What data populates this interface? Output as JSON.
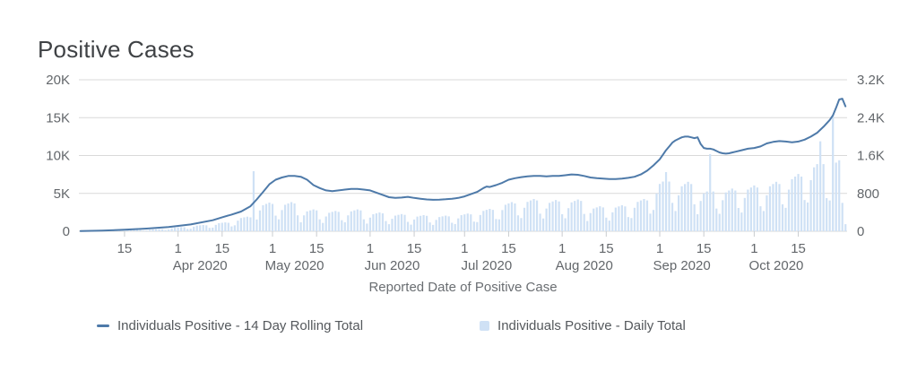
{
  "title": "Positive Cases",
  "colors": {
    "line": "#4e7aa9",
    "bar": "#cfe1f5",
    "grid": "#d9d9d9",
    "tick": "#c9cccf",
    "tick_label": "#63676b",
    "axis_title": "#6a6e72",
    "title_text": "#3f4245",
    "legend_text": "#54585c"
  },
  "chart_data": {
    "type": "combo-line-bar",
    "title": "Positive Cases",
    "legend_position": "bottom",
    "grid": "horizontal-only",
    "x_axis": {
      "title": "Reported Date of Positive Case",
      "range": [
        "2020-03-01",
        "2020-10-30"
      ],
      "ticks": [
        {
          "date": "2020-03-15",
          "label": "15"
        },
        {
          "date": "2020-04-01",
          "label": "1"
        },
        {
          "date": "2020-04-15",
          "label": "15"
        },
        {
          "date": "2020-05-01",
          "label": "1"
        },
        {
          "date": "2020-05-15",
          "label": "15"
        },
        {
          "date": "2020-06-01",
          "label": "1"
        },
        {
          "date": "2020-06-15",
          "label": "15"
        },
        {
          "date": "2020-07-01",
          "label": "1"
        },
        {
          "date": "2020-07-15",
          "label": "15"
        },
        {
          "date": "2020-08-01",
          "label": "1"
        },
        {
          "date": "2020-08-15",
          "label": "15"
        },
        {
          "date": "2020-09-01",
          "label": "1"
        },
        {
          "date": "2020-09-15",
          "label": "15"
        },
        {
          "date": "2020-10-01",
          "label": "1"
        },
        {
          "date": "2020-10-15",
          "label": "15"
        }
      ],
      "month_labels": [
        {
          "date": "2020-04-08",
          "label": "Apr 2020"
        },
        {
          "date": "2020-05-08",
          "label": "May 2020"
        },
        {
          "date": "2020-06-08",
          "label": "Jun 2020"
        },
        {
          "date": "2020-07-08",
          "label": "Jul 2020"
        },
        {
          "date": "2020-08-08",
          "label": "Aug 2020"
        },
        {
          "date": "2020-09-08",
          "label": "Sep 2020"
        },
        {
          "date": "2020-10-08",
          "label": "Oct 2020"
        }
      ]
    },
    "y_axis_left": {
      "max": 20000,
      "ticks": [
        {
          "value": 0,
          "label": "0"
        },
        {
          "value": 5000,
          "label": "5K"
        },
        {
          "value": 10000,
          "label": "10K"
        },
        {
          "value": 15000,
          "label": "15K"
        },
        {
          "value": 20000,
          "label": "20K"
        }
      ]
    },
    "y_axis_right": {
      "max": 3200,
      "ticks": [
        {
          "value": 0,
          "label": "0"
        },
        {
          "value": 800,
          "label": "800"
        },
        {
          "value": 1600,
          "label": "1.6K"
        },
        {
          "value": 2400,
          "label": "2.4K"
        },
        {
          "value": 3200,
          "label": "3.2K"
        }
      ]
    },
    "series": [
      {
        "name": "Individuals Positive - 14 Day Rolling Total",
        "type": "line",
        "axis": "left",
        "points": [
          [
            "2020-03-01",
            30
          ],
          [
            "2020-03-08",
            90
          ],
          [
            "2020-03-15",
            200
          ],
          [
            "2020-03-22",
            360
          ],
          [
            "2020-03-29",
            560
          ],
          [
            "2020-04-05",
            900
          ],
          [
            "2020-04-12",
            1450
          ],
          [
            "2020-04-15",
            1850
          ],
          [
            "2020-04-18",
            2200
          ],
          [
            "2020-04-21",
            2600
          ],
          [
            "2020-04-24",
            3300
          ],
          [
            "2020-04-26",
            4200
          ],
          [
            "2020-04-28",
            5200
          ],
          [
            "2020-04-30",
            6200
          ],
          [
            "2020-05-02",
            6800
          ],
          [
            "2020-05-04",
            7100
          ],
          [
            "2020-05-06",
            7300
          ],
          [
            "2020-05-08",
            7300
          ],
          [
            "2020-05-10",
            7200
          ],
          [
            "2020-05-12",
            6800
          ],
          [
            "2020-05-14",
            6100
          ],
          [
            "2020-05-16",
            5700
          ],
          [
            "2020-05-18",
            5400
          ],
          [
            "2020-05-20",
            5300
          ],
          [
            "2020-05-22",
            5400
          ],
          [
            "2020-05-24",
            5500
          ],
          [
            "2020-05-26",
            5600
          ],
          [
            "2020-05-28",
            5600
          ],
          [
            "2020-05-30",
            5500
          ],
          [
            "2020-06-01",
            5400
          ],
          [
            "2020-06-03",
            5100
          ],
          [
            "2020-06-05",
            4800
          ],
          [
            "2020-06-07",
            4500
          ],
          [
            "2020-06-09",
            4400
          ],
          [
            "2020-06-11",
            4450
          ],
          [
            "2020-06-13",
            4550
          ],
          [
            "2020-06-15",
            4400
          ],
          [
            "2020-06-17",
            4300
          ],
          [
            "2020-06-19",
            4200
          ],
          [
            "2020-06-21",
            4150
          ],
          [
            "2020-06-23",
            4180
          ],
          [
            "2020-06-25",
            4220
          ],
          [
            "2020-06-27",
            4300
          ],
          [
            "2020-06-29",
            4400
          ],
          [
            "2020-07-01",
            4600
          ],
          [
            "2020-07-03",
            4900
          ],
          [
            "2020-07-05",
            5200
          ],
          [
            "2020-07-07",
            5700
          ],
          [
            "2020-07-08",
            5900
          ],
          [
            "2020-07-09",
            5850
          ],
          [
            "2020-07-11",
            6100
          ],
          [
            "2020-07-13",
            6400
          ],
          [
            "2020-07-15",
            6800
          ],
          [
            "2020-07-17",
            7000
          ],
          [
            "2020-07-19",
            7150
          ],
          [
            "2020-07-21",
            7250
          ],
          [
            "2020-07-23",
            7300
          ],
          [
            "2020-07-25",
            7300
          ],
          [
            "2020-07-27",
            7250
          ],
          [
            "2020-07-29",
            7300
          ],
          [
            "2020-07-31",
            7300
          ],
          [
            "2020-08-02",
            7400
          ],
          [
            "2020-08-04",
            7500
          ],
          [
            "2020-08-06",
            7450
          ],
          [
            "2020-08-08",
            7300
          ],
          [
            "2020-08-10",
            7100
          ],
          [
            "2020-08-12",
            7000
          ],
          [
            "2020-08-14",
            6950
          ],
          [
            "2020-08-16",
            6900
          ],
          [
            "2020-08-18",
            6900
          ],
          [
            "2020-08-20",
            6950
          ],
          [
            "2020-08-22",
            7050
          ],
          [
            "2020-08-24",
            7200
          ],
          [
            "2020-08-26",
            7500
          ],
          [
            "2020-08-28",
            8000
          ],
          [
            "2020-08-30",
            8700
          ],
          [
            "2020-09-01",
            9500
          ],
          [
            "2020-09-02",
            10100
          ],
          [
            "2020-09-03",
            10700
          ],
          [
            "2020-09-04",
            11200
          ],
          [
            "2020-09-05",
            11700
          ],
          [
            "2020-09-06",
            12000
          ],
          [
            "2020-09-07",
            12200
          ],
          [
            "2020-09-08",
            12400
          ],
          [
            "2020-09-09",
            12500
          ],
          [
            "2020-09-10",
            12500
          ],
          [
            "2020-09-11",
            12400
          ],
          [
            "2020-09-12",
            12300
          ],
          [
            "2020-09-13",
            12400
          ],
          [
            "2020-09-14",
            11500
          ],
          [
            "2020-09-15",
            11000
          ],
          [
            "2020-09-16",
            10900
          ],
          [
            "2020-09-17",
            10900
          ],
          [
            "2020-09-18",
            10800
          ],
          [
            "2020-09-19",
            10600
          ],
          [
            "2020-09-20",
            10400
          ],
          [
            "2020-09-21",
            10300
          ],
          [
            "2020-09-22",
            10250
          ],
          [
            "2020-09-23",
            10300
          ],
          [
            "2020-09-24",
            10400
          ],
          [
            "2020-09-25",
            10500
          ],
          [
            "2020-09-27",
            10700
          ],
          [
            "2020-09-29",
            10900
          ],
          [
            "2020-10-01",
            11000
          ],
          [
            "2020-10-03",
            11200
          ],
          [
            "2020-10-05",
            11600
          ],
          [
            "2020-10-07",
            11800
          ],
          [
            "2020-10-09",
            11900
          ],
          [
            "2020-10-11",
            11850
          ],
          [
            "2020-10-13",
            11750
          ],
          [
            "2020-10-15",
            11850
          ],
          [
            "2020-10-17",
            12100
          ],
          [
            "2020-10-19",
            12500
          ],
          [
            "2020-10-21",
            13000
          ],
          [
            "2020-10-23",
            13800
          ],
          [
            "2020-10-25",
            14700
          ],
          [
            "2020-10-26",
            15300
          ],
          [
            "2020-10-27",
            16300
          ],
          [
            "2020-10-28",
            17400
          ],
          [
            "2020-10-29",
            17500
          ],
          [
            "2020-10-30",
            16500
          ]
        ]
      },
      {
        "name": "Individuals Positive - Daily Total",
        "type": "bar",
        "axis": "right",
        "start_date": "2020-03-01",
        "daily_values": [
          2,
          4,
          5,
          5,
          6,
          5,
          3,
          7,
          12,
          15,
          16,
          17,
          16,
          9,
          11,
          20,
          25,
          26,
          28,
          26,
          15,
          18,
          32,
          40,
          42,
          44,
          42,
          24,
          36,
          64,
          80,
          84,
          88,
          84,
          48,
          54,
          96,
          120,
          126,
          132,
          126,
          72,
          77,
          136,
          170,
          179,
          187,
          179,
          102,
          126,
          224,
          280,
          294,
          308,
          294,
          1270,
          248,
          440,
          550,
          578,
          605,
          578,
          330,
          252,
          448,
          560,
          588,
          616,
          588,
          336,
          189,
          336,
          420,
          441,
          462,
          441,
          252,
          176,
          312,
          390,
          410,
          429,
          410,
          234,
          189,
          336,
          420,
          441,
          462,
          441,
          252,
          162,
          288,
          360,
          378,
          396,
          378,
          216,
          149,
          264,
          330,
          347,
          363,
          347,
          198,
          140,
          248,
          310,
          326,
          341,
          326,
          186,
          135,
          240,
          300,
          315,
          330,
          315,
          180,
          153,
          272,
          340,
          357,
          374,
          357,
          204,
          194,
          344,
          430,
          452,
          473,
          452,
          258,
          252,
          448,
          560,
          588,
          616,
          588,
          336,
          279,
          496,
          620,
          651,
          682,
          651,
          372,
          270,
          480,
          600,
          630,
          660,
          630,
          360,
          275,
          488,
          610,
          641,
          671,
          641,
          366,
          216,
          384,
          480,
          504,
          528,
          504,
          288,
          225,
          400,
          500,
          525,
          550,
          525,
          300,
          279,
          496,
          620,
          651,
          682,
          651,
          372,
          450,
          800,
          1000,
          1050,
          1250,
          1050,
          600,
          428,
          760,
          950,
          998,
          1045,
          998,
          570,
          360,
          640,
          800,
          840,
          1630,
          840,
          480,
          369,
          656,
          820,
          861,
          902,
          861,
          492,
          396,
          704,
          880,
          924,
          968,
          924,
          528,
          428,
          760,
          950,
          998,
          1045,
          998,
          570,
          495,
          880,
          1100,
          1155,
          1210,
          1155,
          660,
          608,
          1080,
          1350,
          1418,
          1900,
          1418,
          700,
          650,
          2450,
          1450,
          1500,
          600,
          150
        ]
      }
    ],
    "legend": {
      "items": [
        {
          "label": "Individuals Positive - 14 Day Rolling Total",
          "marker": "line"
        },
        {
          "label": "Individuals Positive - Daily Total",
          "marker": "square"
        }
      ]
    }
  }
}
